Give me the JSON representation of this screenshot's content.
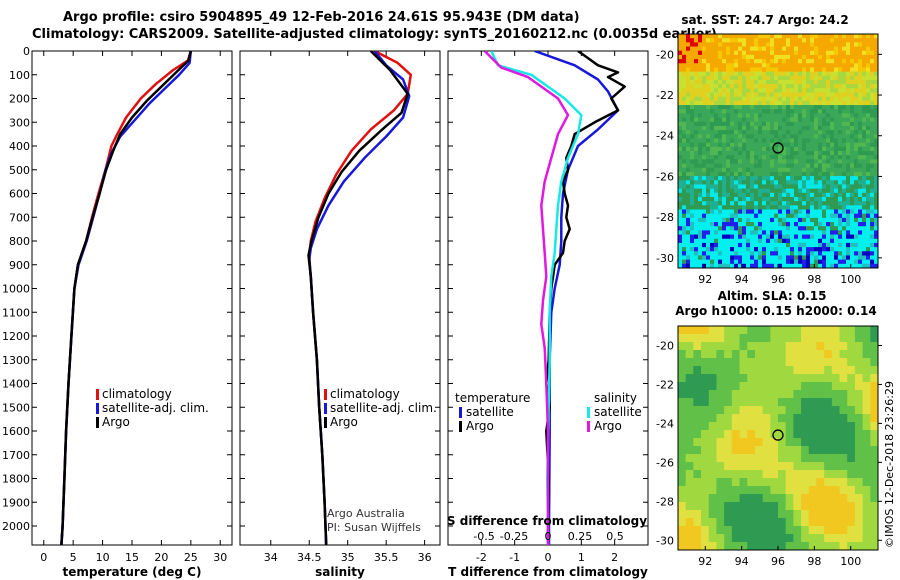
{
  "title": {
    "line1": "Argo profile: csiro 5904895_49 12-Feb-2016 24.61S 95.943E (DM data)",
    "line2": "Climatology: CARS2009. Satellite-adjusted climatology: synTS_20160212.nc (0.0035d earlier)"
  },
  "colors": {
    "red": "#e01010",
    "blue": "#1818d8",
    "black": "#000000",
    "cyan": "#18e8e8",
    "magenta": "#e018e0"
  },
  "side": {
    "sst_title": "sat. SST: 24.7 Argo: 24.2",
    "sla_title1": "Altim. SLA: 0.15",
    "sla_title2": "Argo h1000: 0.15 h2000: 0.14",
    "credit": "©IMOS 12-Dec-2018 23:26:29",
    "map_xticks": [
      "92",
      "94",
      "96",
      "98",
      "100"
    ],
    "map_yticks": [
      "-20",
      "-22",
      "-24",
      "-26",
      "-28",
      "-30"
    ]
  },
  "chart_data": [
    {
      "type": "line",
      "panel": "temperature",
      "xlabel": "temperature (deg C)",
      "xlim": [
        -2,
        32
      ],
      "xticks": [
        0,
        5,
        10,
        15,
        20,
        25,
        30
      ],
      "ylim": [
        2080,
        0
      ],
      "yticks": [
        0,
        100,
        200,
        300,
        400,
        500,
        600,
        700,
        800,
        900,
        1000,
        1100,
        1200,
        1300,
        1400,
        1500,
        1600,
        1700,
        1800,
        1900,
        2000
      ],
      "legend": [
        "climatology",
        "satellite-adj. clim.",
        "Argo"
      ],
      "series": [
        {
          "name": "climatology",
          "color": "red",
          "points": [
            [
              25,
              0
            ],
            [
              24.5,
              40
            ],
            [
              22,
              80
            ],
            [
              19,
              140
            ],
            [
              16.5,
              200
            ],
            [
              14,
              280
            ],
            [
              12.5,
              350
            ],
            [
              11.5,
              400
            ],
            [
              10.5,
              500
            ],
            [
              9.3,
              600
            ],
            [
              8.2,
              700
            ],
            [
              7.2,
              800
            ],
            [
              5.8,
              900
            ],
            [
              5.2,
              1000
            ],
            [
              4.7,
              1200
            ],
            [
              4.2,
              1400
            ],
            [
              3.8,
              1600
            ],
            [
              3.5,
              1800
            ],
            [
              3.2,
              2000
            ],
            [
              3,
              2080
            ]
          ]
        },
        {
          "name": "satellite-adj. clim.",
          "color": "blue",
          "points": [
            [
              25,
              0
            ],
            [
              24.8,
              50
            ],
            [
              23,
              100
            ],
            [
              20.5,
              160
            ],
            [
              18,
              220
            ],
            [
              15.5,
              290
            ],
            [
              13,
              360
            ],
            [
              11.5,
              430
            ],
            [
              10.5,
              500
            ],
            [
              9.5,
              600
            ],
            [
              8.4,
              700
            ],
            [
              7.3,
              800
            ],
            [
              5.9,
              900
            ],
            [
              5.2,
              1000
            ],
            [
              4.7,
              1200
            ],
            [
              4.2,
              1400
            ],
            [
              3.8,
              1600
            ],
            [
              3.5,
              1800
            ],
            [
              3.2,
              2000
            ],
            [
              3,
              2080
            ]
          ]
        },
        {
          "name": "Argo",
          "color": "black",
          "points": [
            [
              25,
              0
            ],
            [
              24.6,
              40
            ],
            [
              22.5,
              90
            ],
            [
              20,
              150
            ],
            [
              17.5,
              210
            ],
            [
              15,
              280
            ],
            [
              13,
              350
            ],
            [
              11.8,
              420
            ],
            [
              10.6,
              500
            ],
            [
              9.5,
              600
            ],
            [
              8.3,
              700
            ],
            [
              7.2,
              800
            ],
            [
              5.8,
              900
            ],
            [
              5.2,
              1000
            ],
            [
              4.7,
              1200
            ],
            [
              4.2,
              1400
            ],
            [
              3.8,
              1600
            ],
            [
              3.5,
              1800
            ],
            [
              3.2,
              2000
            ],
            [
              3,
              2080
            ]
          ]
        }
      ]
    },
    {
      "type": "line",
      "panel": "salinity",
      "xlabel": "salinity",
      "xlim": [
        33.6,
        36.2
      ],
      "xticks": [
        34,
        34.5,
        35,
        35.5,
        36
      ],
      "ylim": [
        2080,
        0
      ],
      "legend": [
        "climatology",
        "satellite-adj. clim.",
        "Argo"
      ],
      "annotation": [
        "Argo Australia",
        "PI: Susan Wijffels"
      ],
      "series": [
        {
          "name": "climatology",
          "color": "red",
          "points": [
            [
              35.35,
              0
            ],
            [
              35.65,
              50
            ],
            [
              35.82,
              100
            ],
            [
              35.78,
              180
            ],
            [
              35.6,
              250
            ],
            [
              35.3,
              330
            ],
            [
              35.05,
              420
            ],
            [
              34.85,
              520
            ],
            [
              34.7,
              620
            ],
            [
              34.58,
              720
            ],
            [
              34.52,
              800
            ],
            [
              34.5,
              860
            ],
            [
              34.52,
              950
            ],
            [
              34.55,
              1100
            ],
            [
              34.6,
              1300
            ],
            [
              34.63,
              1500
            ],
            [
              34.67,
              1700
            ],
            [
              34.7,
              1900
            ],
            [
              34.72,
              2080
            ]
          ]
        },
        {
          "name": "satellite-adj. clim.",
          "color": "blue",
          "points": [
            [
              35.35,
              0
            ],
            [
              35.5,
              60
            ],
            [
              35.72,
              120
            ],
            [
              35.8,
              190
            ],
            [
              35.72,
              280
            ],
            [
              35.5,
              360
            ],
            [
              35.22,
              450
            ],
            [
              34.95,
              550
            ],
            [
              34.75,
              650
            ],
            [
              34.6,
              750
            ],
            [
              34.52,
              830
            ],
            [
              34.5,
              880
            ],
            [
              34.52,
              950
            ],
            [
              34.55,
              1100
            ],
            [
              34.6,
              1300
            ],
            [
              34.63,
              1500
            ],
            [
              34.67,
              1700
            ],
            [
              34.7,
              1900
            ],
            [
              34.72,
              2080
            ]
          ]
        },
        {
          "name": "Argo",
          "color": "black",
          "points": [
            [
              35.3,
              0
            ],
            [
              35.55,
              80
            ],
            [
              35.78,
              180
            ],
            [
              35.7,
              260
            ],
            [
              35.45,
              330
            ],
            [
              35.15,
              420
            ],
            [
              34.92,
              510
            ],
            [
              34.75,
              600
            ],
            [
              34.62,
              700
            ],
            [
              34.53,
              800
            ],
            [
              34.49,
              860
            ],
            [
              34.52,
              950
            ],
            [
              34.55,
              1100
            ],
            [
              34.6,
              1300
            ],
            [
              34.63,
              1500
            ],
            [
              34.67,
              1700
            ],
            [
              34.7,
              1900
            ],
            [
              34.72,
              2080
            ]
          ]
        }
      ]
    },
    {
      "type": "line",
      "panel": "difference",
      "xlabel": "T difference from climatology",
      "xlabel_top": "S difference from climatology",
      "xlim": [
        -3,
        3
      ],
      "xticks": [
        -2,
        -1,
        0,
        1,
        2
      ],
      "s_xticks": [
        "-0.5",
        "-0.25",
        "0",
        "0.25",
        "0.5"
      ],
      "ylim": [
        2080,
        0
      ],
      "legend_temp": {
        "title": "temperature",
        "items": [
          "satellite",
          "Argo"
        ]
      },
      "legend_sal": {
        "title": "salinity",
        "items": [
          "satellite",
          "Argo"
        ]
      },
      "series": [
        {
          "name": "T satellite",
          "color": "blue",
          "points": [
            [
              -0.4,
              0
            ],
            [
              0.8,
              60
            ],
            [
              1.5,
              120
            ],
            [
              1.8,
              170
            ],
            [
              2.1,
              250
            ],
            [
              1.5,
              330
            ],
            [
              0.9,
              400
            ],
            [
              0.6,
              500
            ],
            [
              0.45,
              600
            ],
            [
              0.4,
              700
            ],
            [
              0.4,
              800
            ],
            [
              0.35,
              900
            ],
            [
              0.2,
              1000
            ],
            [
              0.1,
              1100
            ],
            [
              0.05,
              1300
            ],
            [
              0.05,
              1600
            ],
            [
              0.03,
              2000
            ],
            [
              0.03,
              2080
            ]
          ]
        },
        {
          "name": "T Argo",
          "color": "black",
          "points": [
            [
              0.9,
              0
            ],
            [
              1.2,
              30
            ],
            [
              1.5,
              60
            ],
            [
              2.1,
              90
            ],
            [
              1.8,
              110
            ],
            [
              2.3,
              150
            ],
            [
              1.9,
              200
            ],
            [
              2.1,
              250
            ],
            [
              1.4,
              300
            ],
            [
              0.8,
              350
            ],
            [
              0.7,
              400
            ],
            [
              0.55,
              450
            ],
            [
              0.6,
              500
            ],
            [
              0.45,
              550
            ],
            [
              0.5,
              600
            ],
            [
              0.6,
              650
            ],
            [
              0.55,
              700
            ],
            [
              0.65,
              750
            ],
            [
              0.5,
              800
            ],
            [
              0.45,
              850
            ],
            [
              0.2,
              900
            ],
            [
              0.1,
              1000
            ],
            [
              0.05,
              1100
            ],
            [
              0.02,
              1300
            ],
            [
              -0.05,
              1400
            ],
            [
              0.05,
              1500
            ],
            [
              -0.05,
              1600
            ],
            [
              0.02,
              1800
            ],
            [
              0,
              2000
            ],
            [
              0,
              2080
            ]
          ]
        },
        {
          "name": "S satellite",
          "color": "cyan",
          "points": [
            [
              -1.7,
              0
            ],
            [
              -1.5,
              60
            ],
            [
              -0.5,
              100
            ],
            [
              0.5,
              200
            ],
            [
              1.0,
              270
            ],
            [
              0.9,
              350
            ],
            [
              0.6,
              450
            ],
            [
              0.4,
              550
            ],
            [
              0.3,
              650
            ],
            [
              0.25,
              750
            ],
            [
              0.2,
              850
            ],
            [
              0.1,
              950
            ],
            [
              0.05,
              1100
            ],
            [
              0.05,
              1300
            ],
            [
              0.02,
              1500
            ],
            [
              -0.02,
              1800
            ],
            [
              0,
              2000
            ],
            [
              0,
              2080
            ]
          ]
        },
        {
          "name": "S Argo",
          "color": "magenta",
          "points": [
            [
              -1.9,
              0
            ],
            [
              -1.4,
              70
            ],
            [
              -0.6,
              110
            ],
            [
              0.3,
              200
            ],
            [
              0.6,
              270
            ],
            [
              0.3,
              350
            ],
            [
              0.1,
              450
            ],
            [
              -0.1,
              550
            ],
            [
              -0.2,
              650
            ],
            [
              -0.15,
              750
            ],
            [
              -0.1,
              850
            ],
            [
              -0.05,
              950
            ],
            [
              -0.15,
              1050
            ],
            [
              -0.2,
              1150
            ],
            [
              -0.1,
              1250
            ],
            [
              -0.05,
              1400
            ],
            [
              0,
              1600
            ],
            [
              0,
              2080
            ]
          ]
        }
      ]
    },
    {
      "type": "heatmap",
      "panel": "sst-map",
      "title": "sat. SST: 24.7 Argo: 24.2",
      "xlim": [
        90.5,
        101.5
      ],
      "ylim": [
        -30.5,
        -19
      ],
      "xticks": [
        92,
        94,
        96,
        98,
        100
      ],
      "yticks": [
        -20,
        -22,
        -24,
        -26,
        -28,
        -30
      ],
      "marker": [
        96,
        -24.6
      ]
    },
    {
      "type": "heatmap",
      "panel": "sla-map",
      "title": "Altim. SLA: 0.15",
      "xlim": [
        90.5,
        101.5
      ],
      "ylim": [
        -30.5,
        -19
      ],
      "xticks": [
        92,
        94,
        96,
        98,
        100
      ],
      "yticks": [
        -20,
        -22,
        -24,
        -26,
        -28,
        -30
      ],
      "marker": [
        96,
        -24.6
      ]
    }
  ]
}
